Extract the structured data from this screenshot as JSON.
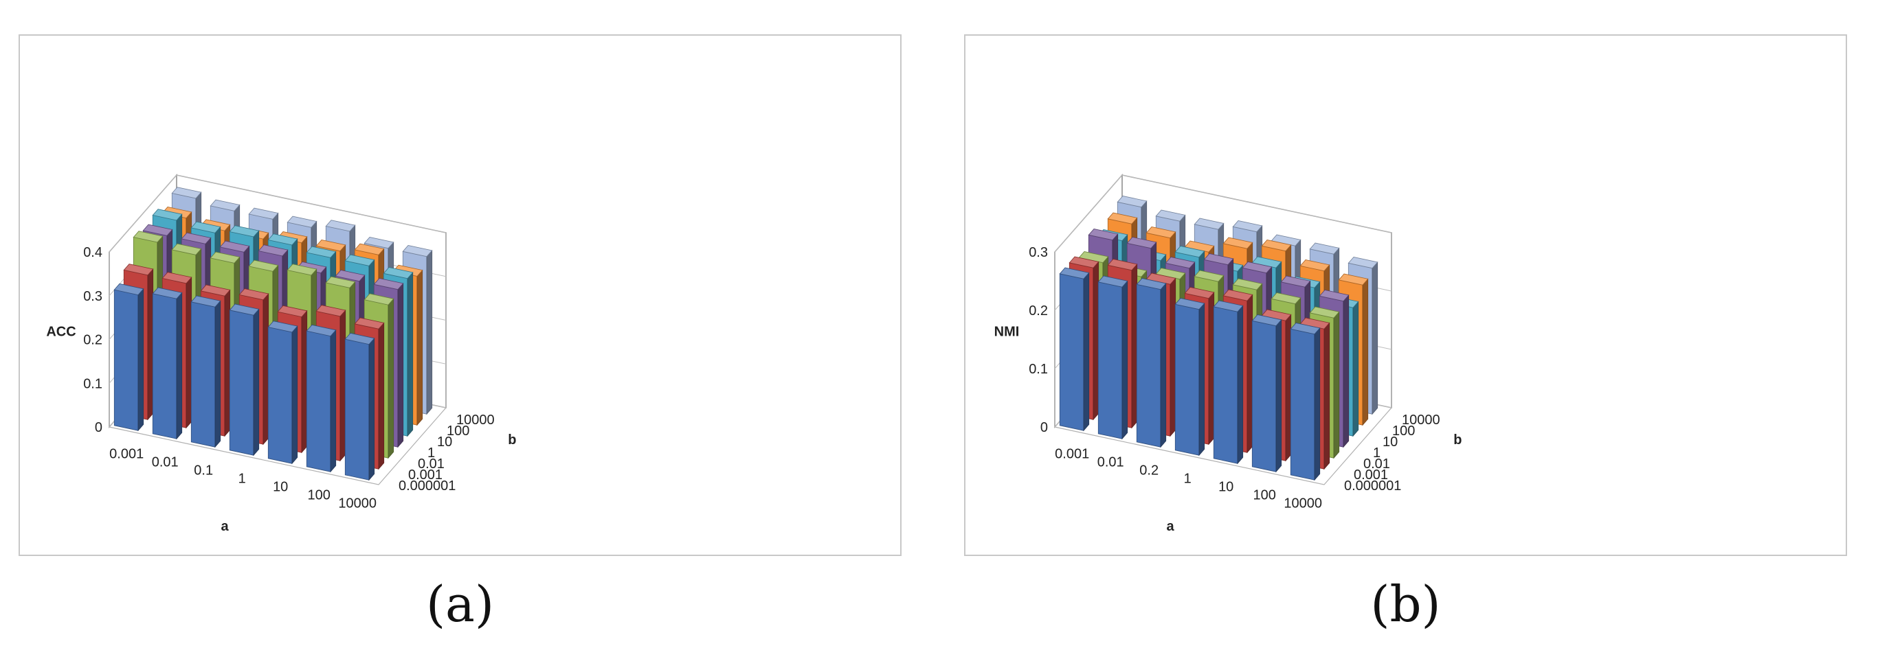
{
  "chart_data": [
    {
      "type": "bar3d",
      "caption": "(a)",
      "ylabel": "ACC",
      "xlabel": "a",
      "zlabel": "b",
      "ylim": [
        0,
        0.4
      ],
      "yticks": [
        "0",
        "0.1",
        "0.2",
        "0.3",
        "0.4"
      ],
      "categories": [
        "0.001",
        "0.01",
        "0.1",
        "1",
        "10",
        "100",
        "10000"
      ],
      "depth_labels": [
        "0.000001",
        "0.001",
        "0.01",
        "1",
        "10",
        "100",
        "10000"
      ],
      "series": [
        {
          "name": "0.000001",
          "color": "#4672b6",
          "values": [
            0.31,
            0.32,
            0.32,
            0.32,
            0.3,
            0.31,
            0.31
          ]
        },
        {
          "name": "0.001",
          "color": "#c0413e",
          "values": [
            0.33,
            0.33,
            0.32,
            0.33,
            0.31,
            0.33,
            0.32
          ]
        },
        {
          "name": "0.01",
          "color": "#98b954",
          "values": [
            0.38,
            0.37,
            0.37,
            0.37,
            0.38,
            0.37,
            0.35
          ]
        },
        {
          "name": "1",
          "color": "#7c5fa0",
          "values": [
            0.37,
            0.37,
            0.37,
            0.38,
            0.36,
            0.36,
            0.36
          ]
        },
        {
          "name": "10",
          "color": "#48a9c5",
          "values": [
            0.38,
            0.37,
            0.38,
            0.38,
            0.37,
            0.37,
            0.36
          ]
        },
        {
          "name": "100",
          "color": "#f59035",
          "values": [
            0.36,
            0.35,
            0.35,
            0.36,
            0.36,
            0.37,
            0.34
          ]
        },
        {
          "name": "10000",
          "color": "#a5b9de",
          "values": [
            0.38,
            0.37,
            0.37,
            0.37,
            0.38,
            0.36,
            0.36
          ]
        }
      ]
    },
    {
      "type": "bar3d",
      "caption": "(b)",
      "ylabel": "NMI",
      "xlabel": "a",
      "zlabel": "b",
      "ylim": [
        0,
        0.3
      ],
      "yticks": [
        "0",
        "0.1",
        "0.2",
        "0.3"
      ],
      "categories": [
        "0.001",
        "0.01",
        "0.2",
        "1",
        "10",
        "100",
        "10000"
      ],
      "depth_labels": [
        "0.000001",
        "0.001",
        "0.01",
        "1",
        "10",
        "100",
        "10000"
      ],
      "series": [
        {
          "name": "0.000001",
          "color": "#4672b6",
          "values": [
            0.26,
            0.26,
            0.27,
            0.25,
            0.26,
            0.25,
            0.25
          ]
        },
        {
          "name": "0.001",
          "color": "#c0413e",
          "values": [
            0.26,
            0.27,
            0.26,
            0.25,
            0.26,
            0.24,
            0.24
          ]
        },
        {
          "name": "0.01",
          "color": "#98b954",
          "values": [
            0.25,
            0.24,
            0.25,
            0.26,
            0.26,
            0.25,
            0.24
          ]
        },
        {
          "name": "1",
          "color": "#7c5fa0",
          "values": [
            0.27,
            0.27,
            0.25,
            0.27,
            0.27,
            0.26,
            0.25
          ]
        },
        {
          "name": "10",
          "color": "#48a9c5",
          "values": [
            0.25,
            0.23,
            0.25,
            0.24,
            0.26,
            0.24,
            0.22
          ]
        },
        {
          "name": "100",
          "color": "#f59035",
          "values": [
            0.26,
            0.25,
            0.24,
            0.26,
            0.27,
            0.25,
            0.24
          ]
        },
        {
          "name": "10000",
          "color": "#a5b9de",
          "values": [
            0.27,
            0.26,
            0.26,
            0.27,
            0.26,
            0.26,
            0.25
          ]
        }
      ]
    }
  ]
}
